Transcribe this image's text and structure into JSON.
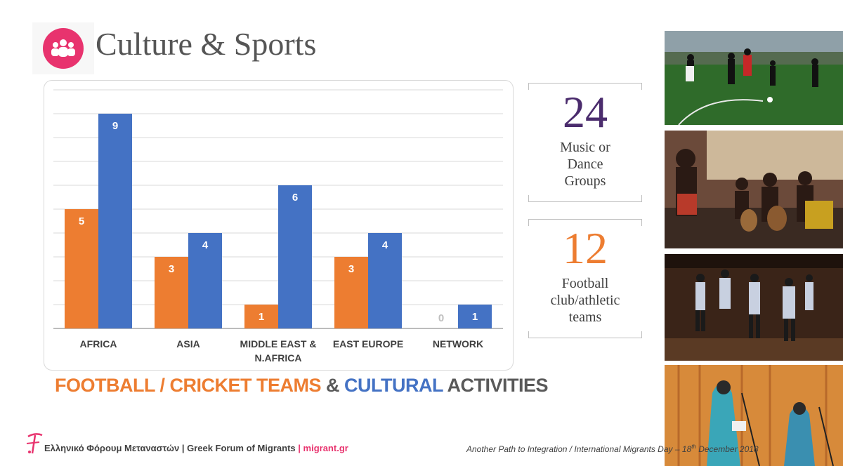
{
  "header": {
    "title": "Culture & Sports",
    "icon": "people-group-icon",
    "icon_color": "#e8336e"
  },
  "chart_data": {
    "type": "bar",
    "categories": [
      "AFRICA",
      "ASIA",
      "MIDDLE EAST & N.AFRICA",
      "EAST EUROPE",
      "NETWORK"
    ],
    "series": [
      {
        "values": [
          5,
          3,
          1,
          3,
          0
        ],
        "color": "#ed7d31"
      },
      {
        "values": [
          9,
          4,
          6,
          4,
          1
        ],
        "color": "#4472c4"
      }
    ],
    "ylim": [
      0,
      10
    ],
    "grid": true,
    "data_labels": true,
    "title": "",
    "xlabel": "",
    "ylabel": ""
  },
  "subtitle": {
    "part1": "FOOTBALL / CRICKET TEAMS",
    "part2": " & ",
    "part3": "CULTURAL",
    "part4": " ACTIVITIES"
  },
  "stats": [
    {
      "number": "24",
      "label_lines": [
        "Music or",
        "Dance",
        "Groups"
      ],
      "color": "#4b2c6d"
    },
    {
      "number": "12",
      "label_lines": [
        "Football",
        "club/athletic",
        "teams"
      ],
      "color": "#ed7d31"
    }
  ],
  "photos": [
    {
      "icon": "football-match-photo"
    },
    {
      "icon": "dance-drummers-photo"
    },
    {
      "icon": "folk-dance-stage-photo"
    },
    {
      "icon": "speakers-stage-photo"
    }
  ],
  "footer": {
    "org_name": "Ελληνικό Φόρουμ Μεταναστών | Greek Forum of Migrants",
    "separator": " | ",
    "website": "migrant.gr",
    "event_text": "Another Path to Integration / International Migrants Day – 18",
    "event_sup": "th",
    "event_tail": " December 2018",
    "logo_icon": "forum-logo-icon"
  }
}
